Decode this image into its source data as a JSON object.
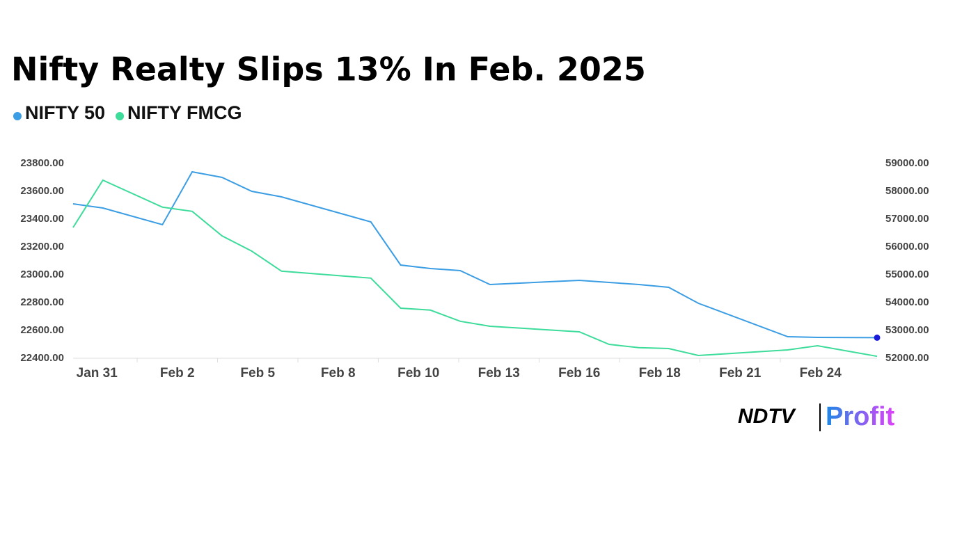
{
  "chart_data": {
    "type": "line",
    "title": "Nifty Realty Slips 13% In Feb. 2025",
    "x": [
      0,
      1,
      3,
      4,
      5,
      6,
      7,
      10,
      11,
      12,
      13,
      14,
      17,
      18,
      19,
      20,
      21,
      24,
      25,
      27
    ],
    "xlim": [
      0,
      27
    ],
    "xticks": [
      {
        "value": 0.8,
        "label": "Jan 31"
      },
      {
        "value": 3.5,
        "label": "Feb 2"
      },
      {
        "value": 6.2,
        "label": "Feb 5"
      },
      {
        "value": 8.9,
        "label": "Feb 8"
      },
      {
        "value": 11.6,
        "label": "Feb 10"
      },
      {
        "value": 14.3,
        "label": "Feb 13"
      },
      {
        "value": 17.0,
        "label": "Feb 16"
      },
      {
        "value": 19.7,
        "label": "Feb 18"
      },
      {
        "value": 22.4,
        "label": "Feb 21"
      },
      {
        "value": 25.1,
        "label": "Feb 24"
      }
    ],
    "ylim": [
      22400,
      23800
    ],
    "yticks": [
      {
        "value": 22400,
        "label": "22400.00"
      },
      {
        "value": 22600,
        "label": "22600.00"
      },
      {
        "value": 22800,
        "label": "22800.00"
      },
      {
        "value": 23000,
        "label": "23000.00"
      },
      {
        "value": 23200,
        "label": "23200.00"
      },
      {
        "value": 23400,
        "label": "23400.00"
      },
      {
        "value": 23600,
        "label": "23600.00"
      },
      {
        "value": 23800,
        "label": "23800.00"
      }
    ],
    "y2lim": [
      52000,
      59000
    ],
    "y2ticks": [
      {
        "value": 52000,
        "label": "52000.00"
      },
      {
        "value": 53000,
        "label": "53000.00"
      },
      {
        "value": 54000,
        "label": "54000.00"
      },
      {
        "value": 55000,
        "label": "55000.00"
      },
      {
        "value": 56000,
        "label": "56000.00"
      },
      {
        "value": 57000,
        "label": "57000.00"
      },
      {
        "value": 58000,
        "label": "58000.00"
      },
      {
        "value": 59000,
        "label": "59000.00"
      }
    ],
    "series": [
      {
        "name": "NIFTY 50",
        "color": "#3b9de3",
        "values": [
          23510,
          23480,
          23360,
          23740,
          23700,
          23600,
          23560,
          23380,
          23070,
          23045,
          23030,
          22930,
          22960,
          22945,
          22930,
          22910,
          22795,
          22555,
          22550,
          22548
        ]
      },
      {
        "name": "NIFTY FMCG",
        "color": "#3ddc9a",
        "axis": "y2",
        "values": [
          56700,
          58400,
          57430,
          57280,
          56400,
          55850,
          55130,
          54880,
          53800,
          53730,
          53330,
          53150,
          52950,
          52500,
          52380,
          52350,
          52100,
          52300,
          52450,
          52070
        ]
      }
    ],
    "end_marker_color": "#1a1adb",
    "logo": {
      "brand": "NDTV",
      "product": "Profit"
    }
  }
}
